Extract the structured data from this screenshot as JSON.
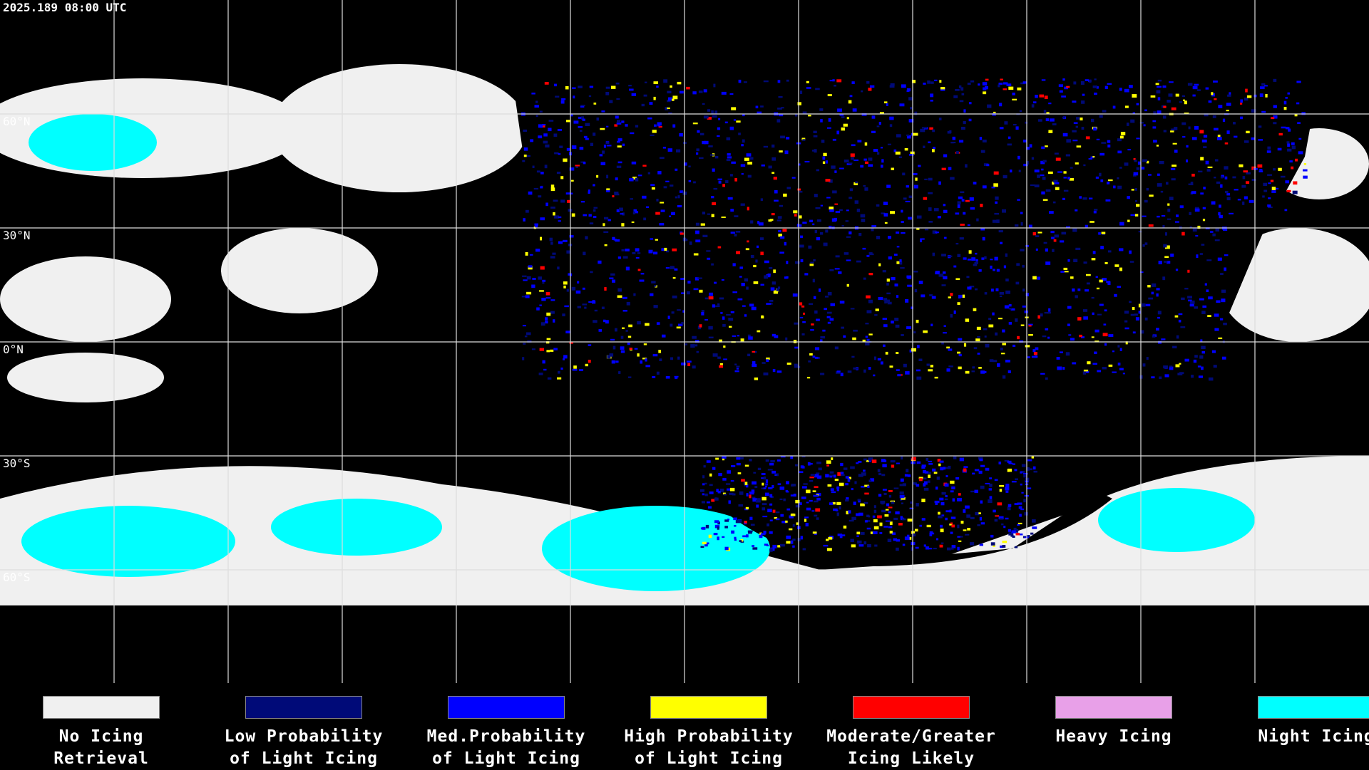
{
  "timestamp": "2025.189 08:00 UTC",
  "latitude_labels": [
    "60°N",
    "30°N",
    "0°N",
    "30°S",
    "60°S"
  ],
  "legend": [
    {
      "lines": [
        "No Icing",
        "Retrieval"
      ],
      "color": "#f0f0f0"
    },
    {
      "lines": [
        "Low Probability",
        "of Light Icing"
      ],
      "color": "#000a78"
    },
    {
      "lines": [
        "Med.Probability",
        "of Light Icing"
      ],
      "color": "#0000ff"
    },
    {
      "lines": [
        "High Probability",
        "of Light Icing"
      ],
      "color": "#ffff00"
    },
    {
      "lines": [
        "Moderate/Greater",
        "Icing Likely"
      ],
      "color": "#ff0000"
    },
    {
      "lines": [
        "Heavy Icing"
      ],
      "color": "#e8a0e8"
    },
    {
      "lines": [
        "Night Icing"
      ],
      "color": "#00ffff"
    }
  ]
}
